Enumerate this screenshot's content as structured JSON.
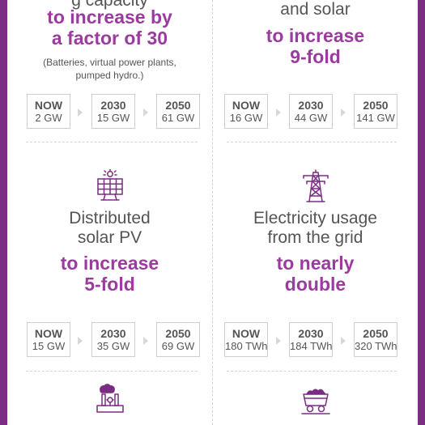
{
  "cards": [
    {
      "subject": [
        "g capacity"
      ],
      "highlight": [
        "to increase by",
        "a factor of 30"
      ],
      "note": [
        "(Batteries, virtual power plants,",
        "pumped hydro.)"
      ],
      "timeline": [
        {
          "year": "NOW",
          "value": "2 GW"
        },
        {
          "year": "2030",
          "value": "15 GW"
        },
        {
          "year": "2050",
          "value": "61 GW"
        }
      ]
    },
    {
      "subject": [
        "and solar"
      ],
      "highlight": [
        "to increase",
        "9-fold"
      ],
      "timeline": [
        {
          "year": "NOW",
          "value": "16 GW"
        },
        {
          "year": "2030",
          "value": "44 GW"
        },
        {
          "year": "2050",
          "value": "141 GW"
        }
      ]
    },
    {
      "icon": "solar-panel-icon",
      "subject": [
        "Distributed",
        "solar PV"
      ],
      "highlight": [
        "to increase",
        "5-fold"
      ],
      "timeline": [
        {
          "year": "NOW",
          "value": "15 GW"
        },
        {
          "year": "2030",
          "value": "35 GW"
        },
        {
          "year": "2050",
          "value": "69 GW"
        }
      ]
    },
    {
      "icon": "transmission-tower-icon",
      "subject": [
        "Electricity usage",
        "from the grid"
      ],
      "highlight": [
        "to nearly",
        "double"
      ],
      "timeline": [
        {
          "year": "NOW",
          "value": "180 TWh"
        },
        {
          "year": "2030",
          "value": "184 TWh"
        },
        {
          "year": "2050",
          "value": "320 TWh"
        }
      ]
    },
    {
      "icon": "factory-icon"
    },
    {
      "icon": "mine-cart-icon"
    }
  ],
  "colors": {
    "frame": "#7b2d83",
    "accent": "#9b3b9f",
    "text": "#555555",
    "divider": "#d4d4d4"
  }
}
